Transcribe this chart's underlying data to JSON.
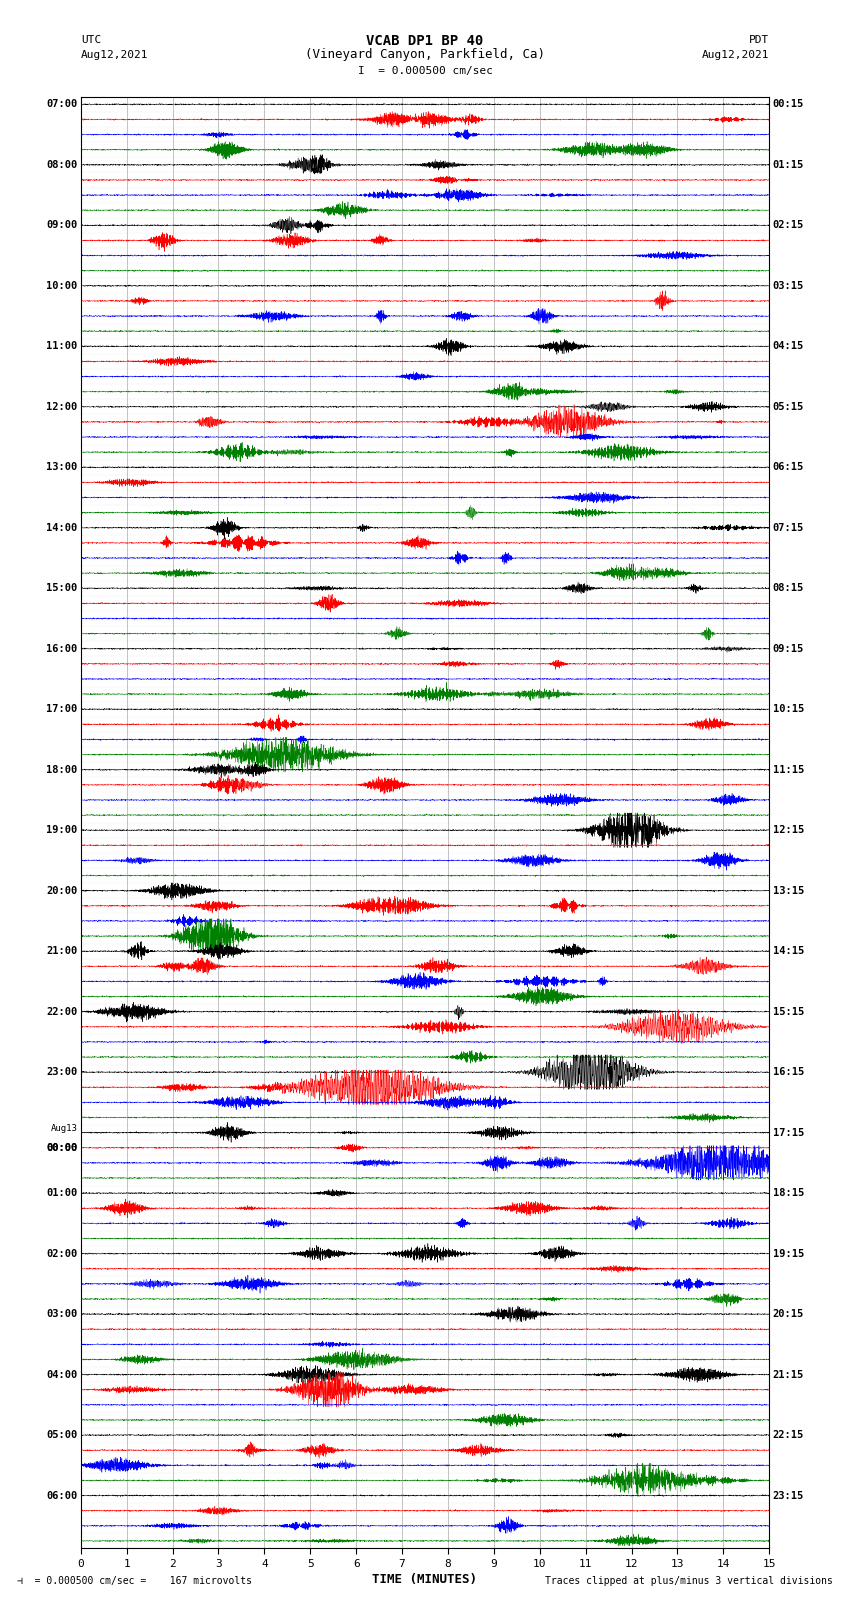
{
  "title_line1": "VCAB DP1 BP 40",
  "title_line2": "(Vineyard Canyon, Parkfield, Ca)",
  "scale_label": "I  = 0.000500 cm/sec",
  "utc_label": "UTC",
  "utc_date": "Aug12,2021",
  "pdt_label": "PDT",
  "pdt_date": "Aug12,2021",
  "xlabel": "TIME (MINUTES)",
  "bottom_left": "= 0.000500 cm/sec =    167 microvolts",
  "bottom_right": "Traces clipped at plus/minus 3 vertical divisions",
  "figsize": [
    8.5,
    16.13
  ],
  "dpi": 100,
  "bg_color": "#ffffff",
  "trace_colors": [
    "black",
    "red",
    "blue",
    "green"
  ],
  "grid_color": "#888888",
  "xmin": 0,
  "xmax": 15,
  "xticks": [
    0,
    1,
    2,
    3,
    4,
    5,
    6,
    7,
    8,
    9,
    10,
    11,
    12,
    13,
    14,
    15
  ],
  "num_rows": 96,
  "left_times_utc": [
    "07:00",
    "",
    "",
    "",
    "08:00",
    "",
    "",
    "",
    "09:00",
    "",
    "",
    "",
    "10:00",
    "",
    "",
    "",
    "11:00",
    "",
    "",
    "",
    "12:00",
    "",
    "",
    "",
    "13:00",
    "",
    "",
    "",
    "14:00",
    "",
    "",
    "",
    "15:00",
    "",
    "",
    "",
    "16:00",
    "",
    "",
    "",
    "17:00",
    "",
    "",
    "",
    "18:00",
    "",
    "",
    "",
    "19:00",
    "",
    "",
    "",
    "20:00",
    "",
    "",
    "",
    "21:00",
    "",
    "",
    "",
    "22:00",
    "",
    "",
    "",
    "23:00",
    "",
    "",
    "",
    "Aug13",
    "00:00",
    "",
    "",
    "01:00",
    "",
    "",
    "",
    "02:00",
    "",
    "",
    "",
    "03:00",
    "",
    "",
    "",
    "04:00",
    "",
    "",
    "",
    "05:00",
    "",
    "",
    "",
    "06:00",
    "",
    "",
    ""
  ],
  "right_times_pdt": [
    "00:15",
    "",
    "",
    "",
    "01:15",
    "",
    "",
    "",
    "02:15",
    "",
    "",
    "",
    "03:15",
    "",
    "",
    "",
    "04:15",
    "",
    "",
    "",
    "05:15",
    "",
    "",
    "",
    "06:15",
    "",
    "",
    "",
    "07:15",
    "",
    "",
    "",
    "08:15",
    "",
    "",
    "",
    "09:15",
    "",
    "",
    "",
    "10:15",
    "",
    "",
    "",
    "11:15",
    "",
    "",
    "",
    "12:15",
    "",
    "",
    "",
    "13:15",
    "",
    "",
    "",
    "14:15",
    "",
    "",
    "",
    "15:15",
    "",
    "",
    "",
    "16:15",
    "",
    "",
    "",
    "17:15",
    "",
    "",
    "",
    "18:15",
    "",
    "",
    "",
    "19:15",
    "",
    "",
    "",
    "20:15",
    "",
    "",
    "",
    "21:15",
    "",
    "",
    "",
    "22:15",
    "",
    "",
    "",
    "23:15",
    "",
    "",
    ""
  ]
}
